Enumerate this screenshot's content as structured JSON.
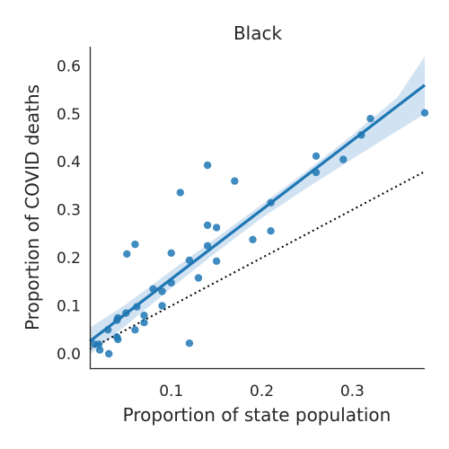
{
  "chart_data": {
    "type": "scatter",
    "title": "Black",
    "xlabel": "Proportion of state population",
    "ylabel": "Proportion of COVID deaths",
    "xlim": [
      0.01,
      0.38
    ],
    "ylim": [
      -0.03,
      0.64
    ],
    "xticks": [
      {
        "value": 0.1,
        "label": "0.1"
      },
      {
        "value": 0.2,
        "label": "0.2"
      },
      {
        "value": 0.3,
        "label": "0.3"
      }
    ],
    "yticks": [
      {
        "value": 0.0,
        "label": "0.0"
      },
      {
        "value": 0.1,
        "label": "0.1"
      },
      {
        "value": 0.2,
        "label": "0.2"
      },
      {
        "value": 0.3,
        "label": "0.3"
      },
      {
        "value": 0.4,
        "label": "0.4"
      },
      {
        "value": 0.5,
        "label": "0.5"
      },
      {
        "value": 0.6,
        "label": "0.6"
      }
    ],
    "points": [
      {
        "x": 0.015,
        "y": 0.02
      },
      {
        "x": 0.02,
        "y": 0.02
      },
      {
        "x": 0.021,
        "y": 0.008
      },
      {
        "x": 0.03,
        "y": 0.05
      },
      {
        "x": 0.031,
        "y": 0.0
      },
      {
        "x": 0.04,
        "y": 0.07
      },
      {
        "x": 0.041,
        "y": 0.075
      },
      {
        "x": 0.04,
        "y": 0.035
      },
      {
        "x": 0.041,
        "y": 0.03
      },
      {
        "x": 0.05,
        "y": 0.085
      },
      {
        "x": 0.051,
        "y": 0.208
      },
      {
        "x": 0.06,
        "y": 0.228
      },
      {
        "x": 0.06,
        "y": 0.05
      },
      {
        "x": 0.062,
        "y": 0.098
      },
      {
        "x": 0.07,
        "y": 0.08
      },
      {
        "x": 0.07,
        "y": 0.065
      },
      {
        "x": 0.08,
        "y": 0.135
      },
      {
        "x": 0.09,
        "y": 0.13
      },
      {
        "x": 0.09,
        "y": 0.1
      },
      {
        "x": 0.1,
        "y": 0.21
      },
      {
        "x": 0.1,
        "y": 0.148
      },
      {
        "x": 0.11,
        "y": 0.336
      },
      {
        "x": 0.12,
        "y": 0.195
      },
      {
        "x": 0.12,
        "y": 0.022
      },
      {
        "x": 0.13,
        "y": 0.158
      },
      {
        "x": 0.14,
        "y": 0.393
      },
      {
        "x": 0.14,
        "y": 0.268
      },
      {
        "x": 0.14,
        "y": 0.225
      },
      {
        "x": 0.15,
        "y": 0.263
      },
      {
        "x": 0.15,
        "y": 0.193
      },
      {
        "x": 0.17,
        "y": 0.36
      },
      {
        "x": 0.19,
        "y": 0.238
      },
      {
        "x": 0.21,
        "y": 0.315
      },
      {
        "x": 0.21,
        "y": 0.256
      },
      {
        "x": 0.26,
        "y": 0.412
      },
      {
        "x": 0.26,
        "y": 0.378
      },
      {
        "x": 0.29,
        "y": 0.405
      },
      {
        "x": 0.31,
        "y": 0.456
      },
      {
        "x": 0.32,
        "y": 0.49
      },
      {
        "x": 0.38,
        "y": 0.502
      }
    ],
    "regression": {
      "x": [
        0.01,
        0.38
      ],
      "y": [
        0.026,
        0.56
      ],
      "ci_band": {
        "x": [
          0.01,
          0.05,
          0.1,
          0.15,
          0.2,
          0.25,
          0.3,
          0.35,
          0.38
        ],
        "lower": [
          -0.002,
          0.059,
          0.137,
          0.212,
          0.283,
          0.346,
          0.406,
          0.465,
          0.5
        ],
        "upper": [
          0.054,
          0.103,
          0.173,
          0.242,
          0.311,
          0.382,
          0.456,
          0.535,
          0.62
        ]
      }
    },
    "reference_line": {
      "style": "dotted",
      "x": [
        0.01,
        0.38
      ],
      "y": [
        0.01,
        0.38
      ]
    },
    "colors": {
      "points": "#1f77b4",
      "line": "#1f77b4",
      "band": "#c6dbef",
      "reference": "#000000"
    }
  }
}
